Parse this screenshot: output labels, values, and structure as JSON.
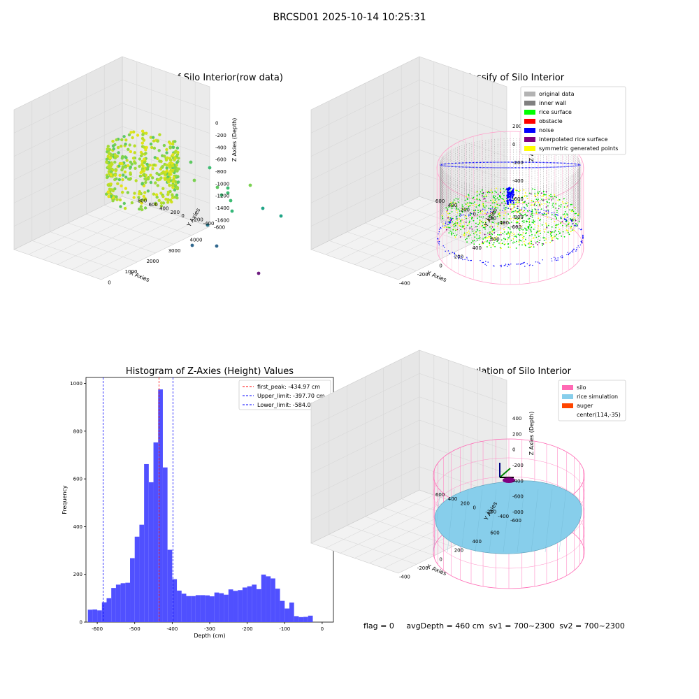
{
  "suptitle": "BRCSD01 2025-10-14 10:25:31",
  "panels": {
    "raw": {
      "title": "3D Plot of Silo Interior(row data)",
      "xlabel": "X Axies",
      "ylabel": "Y Axies",
      "zlabel": "Z Axies (Depth)",
      "xticks": [
        "0",
        "1000",
        "2000",
        "3000",
        "4000"
      ],
      "yticks": [
        "800",
        "600",
        "400",
        "200",
        "0",
        "-200",
        "-400",
        "-600"
      ],
      "zticks": [
        "0",
        "-200",
        "-400",
        "-600",
        "-800",
        "-1000",
        "-1200",
        "-1400",
        "-1600"
      ]
    },
    "classify": {
      "title": "3D classify of Silo Interior",
      "xlabel": "X Axies",
      "ylabel": "Y Axies",
      "zlabel": "Z Axies (Depth)",
      "xticks": [
        "-400",
        "-200",
        "0",
        "200",
        "400",
        "600"
      ],
      "yticks": [
        "600",
        "400",
        "200",
        "0",
        "-200",
        "-400",
        "-600"
      ],
      "zticks": [
        "200",
        "0",
        "-200",
        "-400",
        "-600",
        "-800"
      ],
      "legend": [
        {
          "label": "original data",
          "color": "#b3b3b3"
        },
        {
          "label": "inner wall",
          "color": "#808080"
        },
        {
          "label": "rice surface",
          "color": "#00ff00"
        },
        {
          "label": "obstacle",
          "color": "#ff0000"
        },
        {
          "label": "noise",
          "color": "#0000ff"
        },
        {
          "label": "interpolated rice surface",
          "color": "#800080"
        },
        {
          "label": "symmetric generated points",
          "color": "#ffff00"
        }
      ]
    },
    "simulation": {
      "title": "3D simulation of Silo Interior",
      "xlabel": "X Axies",
      "ylabel": "Y Axies",
      "zlabel": "Z Axies (Depth)",
      "xticks": [
        "-400",
        "-200",
        "0",
        "200",
        "400",
        "600"
      ],
      "yticks": [
        "600",
        "400",
        "200",
        "0",
        "-200",
        "-400",
        "-600"
      ],
      "zticks": [
        "400",
        "200",
        "0",
        "-200",
        "-400",
        "-600",
        "-800"
      ],
      "legend": [
        {
          "label": "silo",
          "color": "#ff69b4"
        },
        {
          "label": "rice simulation",
          "color": "#87ceeb"
        },
        {
          "label": "auger",
          "color": "#ff4500"
        },
        {
          "label": "center(114,-35)",
          "color": ""
        }
      ]
    }
  },
  "chart_data": {
    "type": "bar",
    "title": "Histogram of Z-Axies (Height) Values",
    "xlabel": "Depth (cm)",
    "ylabel": "Frequency",
    "xlim": [
      -630,
      30
    ],
    "ylim": [
      0,
      1025
    ],
    "xticks": [
      -600,
      -500,
      -400,
      -300,
      -200,
      -100,
      0
    ],
    "yticks": [
      0,
      200,
      400,
      600,
      800,
      1000
    ],
    "bin_start": -625,
    "bin_width": 12.5,
    "values": [
      52,
      53,
      49,
      83,
      100,
      143,
      157,
      163,
      165,
      268,
      358,
      408,
      662,
      586,
      753,
      975,
      648,
      303,
      180,
      132,
      119,
      109,
      109,
      113,
      113,
      112,
      108,
      124,
      121,
      115,
      137,
      131,
      134,
      145,
      150,
      157,
      138,
      199,
      192,
      183,
      140,
      89,
      57,
      82,
      25,
      21,
      22,
      27
    ],
    "bar_color": "#5050ff",
    "vlines": [
      {
        "label": "first_peak: -434.97 cm",
        "x": -434.97,
        "color": "#ff0000"
      },
      {
        "label": "Upper_limit: -397.70 cm",
        "x": -397.7,
        "color": "#0000ff"
      },
      {
        "label": "Lower_limit: -584.03 cm",
        "x": -584.03,
        "color": "#0000ff"
      }
    ],
    "legend_position": "upper right"
  },
  "footer": {
    "flag": "flag = 0",
    "stats": "avgDepth = 460 cm  sv1 = 700~2300  sv2 = 700~2300"
  }
}
